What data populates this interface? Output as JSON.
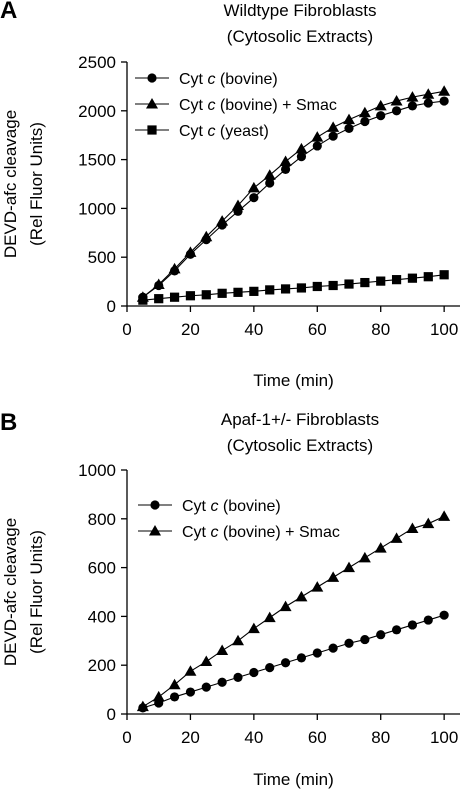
{
  "chart_data": [
    {
      "panel_label": "A",
      "type": "line",
      "title": "Wildtype Fibroblasts",
      "subtitle": "(Cytosolic Extracts)",
      "xlabel": "Time (min)",
      "ylabel_line1": "DEVD-afc cleavage",
      "ylabel_line2": "(Rel Fluor Units)",
      "xlim": [
        0,
        105
      ],
      "ylim": [
        0,
        2500
      ],
      "xticks": [
        0,
        20,
        40,
        60,
        80,
        100
      ],
      "yticks": [
        0,
        500,
        1000,
        1500,
        2000,
        2500
      ],
      "grid": false,
      "legend_position": "top-left",
      "x": [
        5,
        10,
        15,
        20,
        25,
        30,
        35,
        40,
        45,
        50,
        55,
        60,
        65,
        70,
        75,
        80,
        85,
        90,
        95,
        100
      ],
      "series": [
        {
          "name_prefix": "Cyt ",
          "name_italic": "c",
          "name_suffix": " (bovine)",
          "marker": "circle",
          "values": [
            90,
            210,
            360,
            530,
            680,
            830,
            970,
            1110,
            1260,
            1400,
            1530,
            1640,
            1740,
            1820,
            1890,
            1950,
            2000,
            2050,
            2080,
            2100
          ]
        },
        {
          "name_prefix": "Cyt ",
          "name_italic": "c",
          "name_suffix": " (bovine) + Smac",
          "marker": "triangle",
          "values": [
            90,
            220,
            380,
            550,
            710,
            870,
            1030,
            1210,
            1340,
            1480,
            1610,
            1730,
            1830,
            1910,
            1980,
            2050,
            2100,
            2140,
            2170,
            2200
          ]
        },
        {
          "name_prefix": "Cyt ",
          "name_italic": "c",
          "name_suffix": " (yeast)",
          "marker": "square",
          "values": [
            60,
            75,
            90,
            105,
            115,
            130,
            140,
            150,
            165,
            175,
            185,
            200,
            210,
            225,
            240,
            255,
            270,
            285,
            300,
            320
          ]
        }
      ]
    },
    {
      "panel_label": "B",
      "type": "line",
      "title": "Apaf-1+/- Fibroblasts",
      "subtitle": "(Cytosolic Extracts)",
      "xlabel": "Time (min)",
      "ylabel_line1": "DEVD-afc cleavage",
      "ylabel_line2": "(Rel Fluor Units)",
      "xlim": [
        0,
        105
      ],
      "ylim": [
        0,
        1000
      ],
      "xticks": [
        0,
        20,
        40,
        60,
        80,
        100
      ],
      "yticks": [
        0,
        200,
        400,
        600,
        800,
        1000
      ],
      "grid": false,
      "legend_position": "top-left",
      "x": [
        5,
        10,
        15,
        20,
        25,
        30,
        35,
        40,
        45,
        50,
        55,
        60,
        65,
        70,
        75,
        80,
        85,
        90,
        95,
        100
      ],
      "series": [
        {
          "name_prefix": "Cyt ",
          "name_italic": "c",
          "name_suffix": " (bovine)",
          "marker": "circle",
          "values": [
            25,
            45,
            70,
            90,
            110,
            130,
            150,
            170,
            190,
            210,
            230,
            250,
            270,
            290,
            305,
            325,
            345,
            365,
            385,
            405
          ]
        },
        {
          "name_prefix": "Cyt ",
          "name_italic": "c",
          "name_suffix": " (bovine) + Smac",
          "marker": "triangle",
          "values": [
            30,
            70,
            120,
            175,
            215,
            260,
            300,
            350,
            395,
            440,
            480,
            520,
            560,
            600,
            640,
            680,
            720,
            760,
            780,
            810
          ]
        }
      ]
    }
  ]
}
